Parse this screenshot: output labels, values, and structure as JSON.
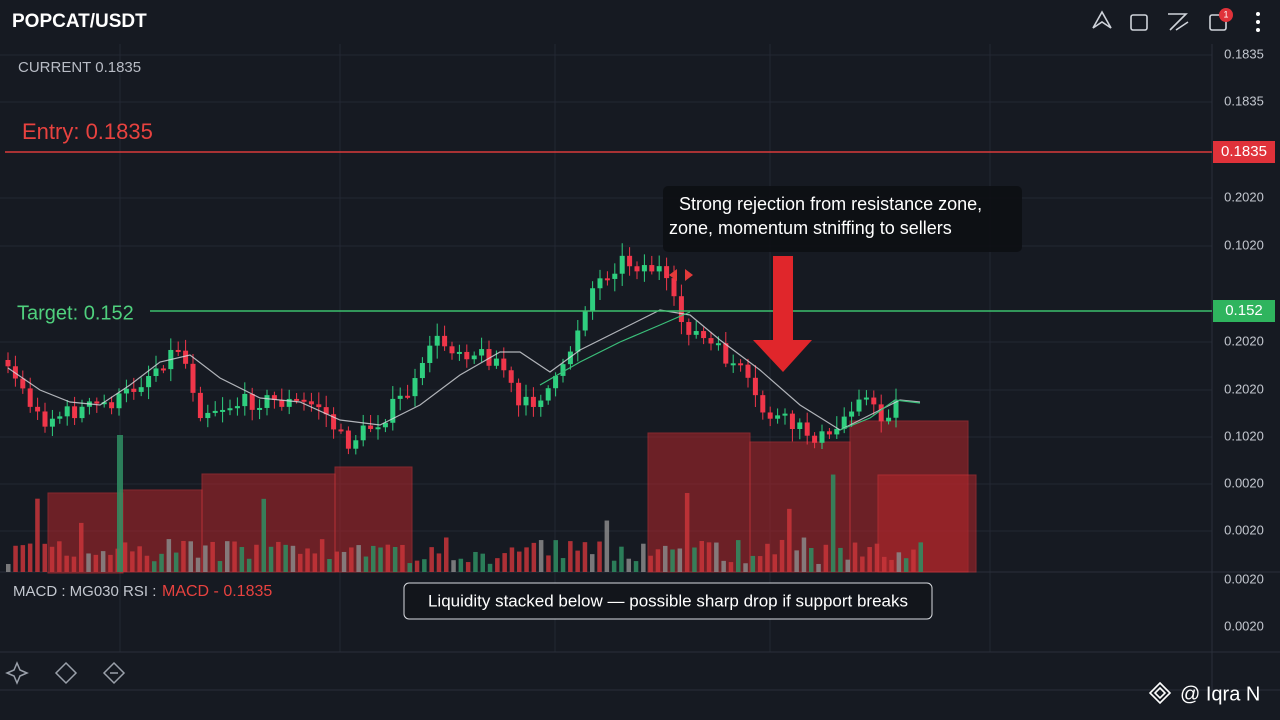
{
  "header": {
    "title": "POPCAT/USDT",
    "badge": "1"
  },
  "current": "CURRENT 0.1835",
  "entry": {
    "label": "Entry: 0.1835",
    "axis_badge": "0.1835"
  },
  "target": {
    "label": "Target: 0.152",
    "axis_badge": "0.152"
  },
  "price_axis": [
    "0.1835",
    "0.1835",
    "0.2020",
    "0.1020",
    "0.2020",
    "0.2020",
    "0.1020",
    "0.0020",
    "0.0020",
    "0.0020",
    "0.0020"
  ],
  "annotation": {
    "line1": "Strong rejection from resistance zone,",
    "line2": "zone, momentum stniffing to sellers"
  },
  "indicator": {
    "left": "MACD : ΜG030 RSI :",
    "right": "MACD - 0.1835"
  },
  "caption": "Liquidity stacked below — possible sharp drop if support breaks",
  "watermark": "@ Iqra N"
}
